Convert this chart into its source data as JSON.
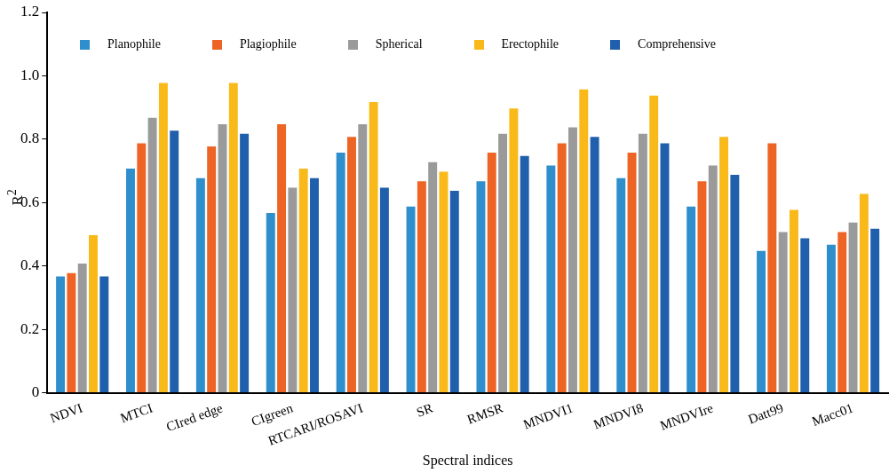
{
  "chart_data": {
    "type": "bar",
    "xlabel": "Spectral indices",
    "ylabel": "R$^{2}$",
    "categories": [
      "NDVI",
      "MTCI",
      "CIred edge",
      "CIgreen",
      "RTCARI/ROSAVI",
      "SR",
      "RMSR",
      "MNDVI1",
      "MNDVI8",
      "MNDVIre",
      "Datt99",
      "Macc01"
    ],
    "series": [
      {
        "name": "Planophile",
        "color": "#2e8fcc",
        "values": [
          0.37,
          0.71,
          0.68,
          0.57,
          0.76,
          0.59,
          0.67,
          0.72,
          0.68,
          0.59,
          0.45,
          0.47
        ]
      },
      {
        "name": "Plagiophile",
        "color": "#ee6424",
        "values": [
          0.38,
          0.79,
          0.78,
          0.85,
          0.81,
          0.67,
          0.76,
          0.79,
          0.76,
          0.67,
          0.79,
          0.51
        ]
      },
      {
        "name": "Spherical",
        "color": "#9a9a9a",
        "values": [
          0.41,
          0.87,
          0.85,
          0.65,
          0.85,
          0.73,
          0.82,
          0.84,
          0.82,
          0.72,
          0.51,
          0.54
        ]
      },
      {
        "name": "Erectophile",
        "color": "#f9b918",
        "values": [
          0.5,
          0.98,
          0.98,
          0.71,
          0.92,
          0.7,
          0.9,
          0.96,
          0.94,
          0.81,
          0.58,
          0.63
        ]
      },
      {
        "name": "Comprehensive",
        "color": "#1f5fac",
        "values": [
          0.37,
          0.83,
          0.82,
          0.68,
          0.65,
          0.64,
          0.75,
          0.81,
          0.79,
          0.69,
          0.49,
          0.52
        ]
      }
    ],
    "ylim": [
      0,
      1.2
    ],
    "yticks": [
      0,
      {
        "value": 0.2,
        "label": "0.2"
      },
      {
        "value": 0.4,
        "label": "0.4"
      },
      {
        "value": 0.6,
        "label": "0.6"
      },
      {
        "value": 0.8,
        "label": "0.8"
      },
      {
        "value": 1,
        "label": "1.0"
      },
      {
        "value": 1.2,
        "label": "1.2"
      }
    ],
    "grid": false,
    "legend": "top"
  }
}
